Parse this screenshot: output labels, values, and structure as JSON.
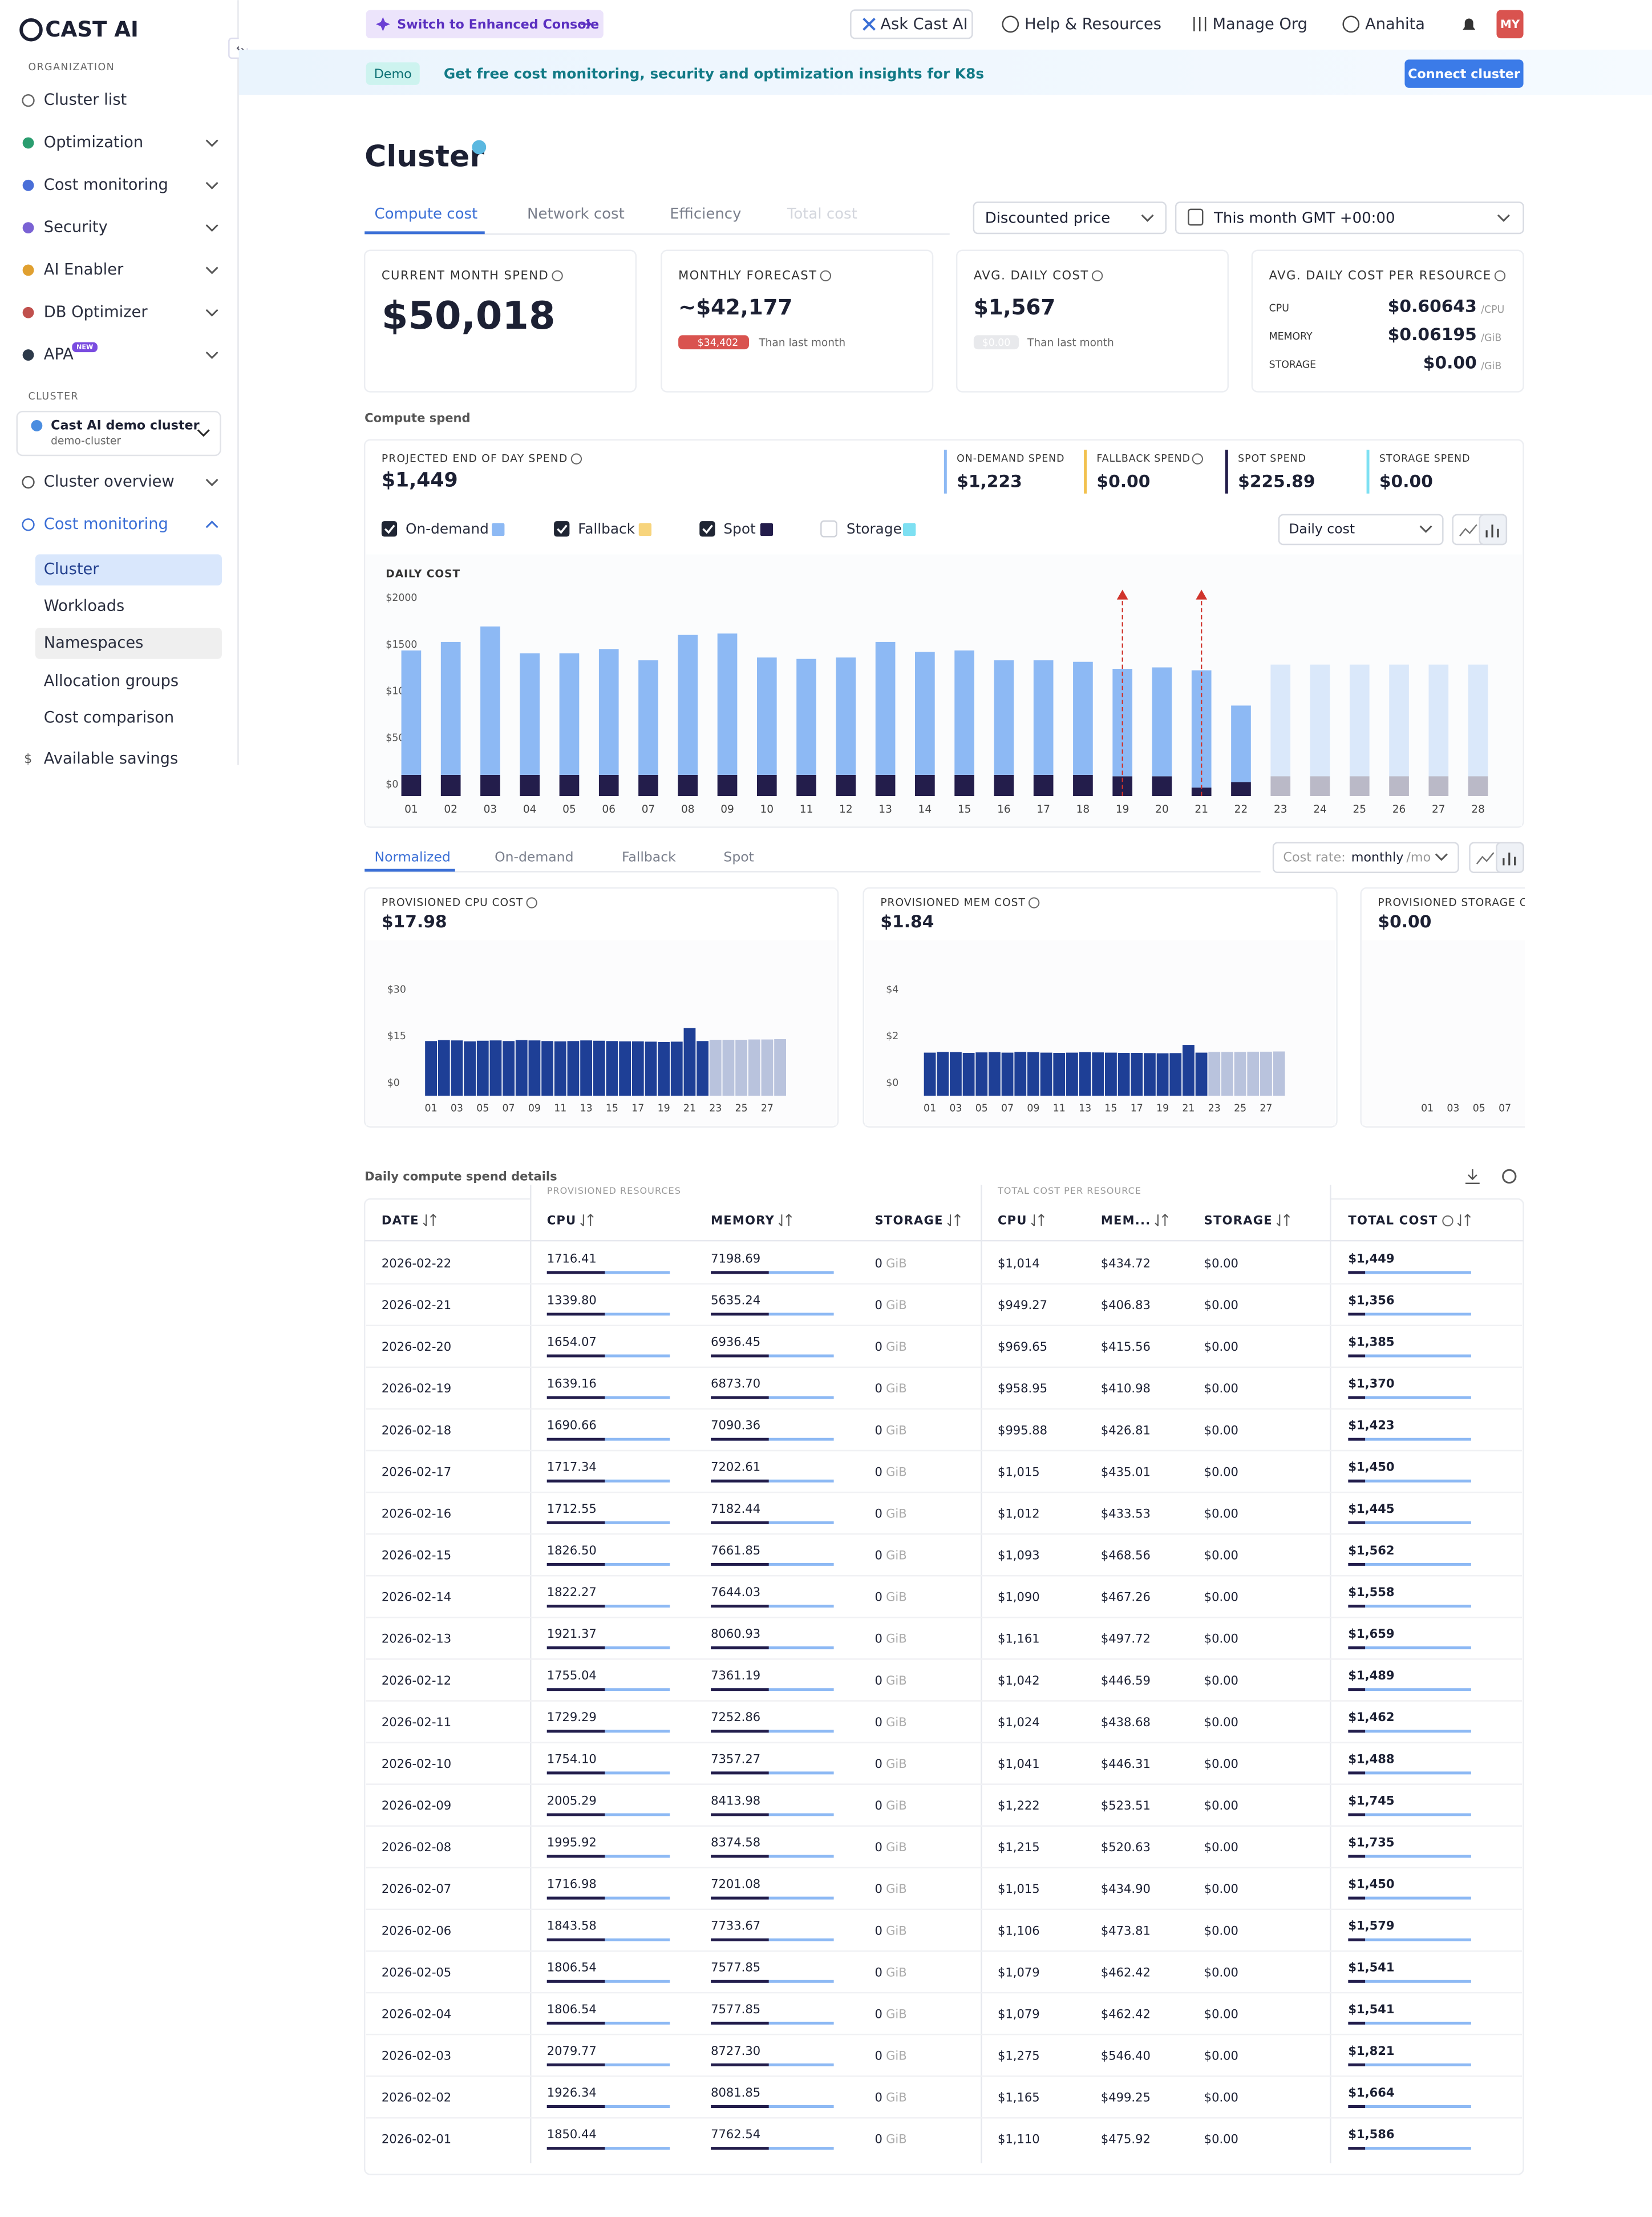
{
  "sidebar": {
    "logo": "CAST AI",
    "org_label": "ORGANIZATION",
    "org_items": [
      "Cluster list",
      "Optimization",
      "Cost monitoring",
      "Security",
      "AI Enabler",
      "DB Optimizer",
      "APA"
    ],
    "new_badge": "NEW",
    "cluster_label": "CLUSTER",
    "cluster_name": "Cast AI demo cluster",
    "cluster_id": "demo-cluster",
    "cluster_items": [
      "Cluster overview",
      "Cost monitoring"
    ],
    "sub_items": [
      "Cluster",
      "Workloads",
      "Namespaces",
      "Allocation groups",
      "Cost comparison"
    ],
    "bottom_item": "Available savings"
  },
  "topbar": {
    "enhanced": "Switch to Enhanced Console",
    "ask": "Ask Cast AI",
    "help": "Help & Resources",
    "org": "Manage Org",
    "user": "Anahita",
    "avatar": "MY"
  },
  "banner": {
    "badge": "Demo",
    "text": "Get free cost monitoring, security and optimization insights for K8s",
    "button": "Connect cluster"
  },
  "page": {
    "title": "Cluster",
    "tabs": [
      "Compute cost",
      "Network cost",
      "Efficiency",
      "Total cost"
    ],
    "price_select": "Discounted price",
    "date_select": "This month GMT +00:00"
  },
  "cards": [
    {
      "label": "CURRENT MONTH SPEND",
      "value": "$50,018"
    },
    {
      "label": "MONTHLY FORECAST",
      "value": "~$42,177",
      "change": "$34,402",
      "note": "Than last month"
    },
    {
      "label": "AVG. DAILY COST",
      "value": "$1,567",
      "change": "$0.00",
      "note": "Than last month"
    }
  ],
  "resource_card": {
    "label": "AVG. DAILY COST PER RESOURCE",
    "rows": [
      {
        "name": "CPU",
        "value": "$0.60643",
        "unit": "/CPU"
      },
      {
        "name": "MEMORY",
        "value": "$0.06195",
        "unit": "/GiB"
      },
      {
        "name": "STORAGE",
        "value": "$0.00",
        "unit": "/GiB"
      }
    ]
  },
  "compute_spend": {
    "title": "Compute spend",
    "projected_label": "PROJECTED END OF DAY SPEND",
    "projected_value": "$1,449",
    "spends": [
      {
        "label": "ON-DEMAND SPEND",
        "value": "$1,223",
        "color": "#8db9f4"
      },
      {
        "label": "FALLBACK SPEND",
        "value": "$0.00",
        "color": "#f2c14e"
      },
      {
        "label": "SPOT SPEND",
        "value": "$225.89",
        "color": "#231d4b"
      },
      {
        "label": "STORAGE SPEND",
        "value": "$0.00",
        "color": "#7ee0f2"
      }
    ],
    "view_select": "Daily cost"
  },
  "resource_tabs": {
    "tabs": [
      "Normalized",
      "On-demand",
      "Fallback",
      "Spot"
    ],
    "rate_label": "Cost rate:",
    "rate_value": "monthly",
    "rate_unit": "/mo"
  },
  "chart_data": [
    {
      "type": "bar",
      "stacked": true,
      "title": "DAILY COST",
      "categories": [
        "01",
        "02",
        "03",
        "04",
        "05",
        "06",
        "07",
        "08",
        "09",
        "10",
        "11",
        "12",
        "13",
        "14",
        "15",
        "16",
        "17",
        "18",
        "19",
        "20",
        "21",
        "22",
        "23",
        "24",
        "25",
        "26",
        "27",
        "28"
      ],
      "series": [
        {
          "name": "On-demand",
          "color": "#8db9f4",
          "checked": true,
          "values": [
            1334,
            1425,
            1591,
            1303,
            1303,
            1349,
            1228,
            1500,
            1515,
            1258,
            1243,
            1258,
            1425,
            1318,
            1334,
            1228,
            1228,
            1212,
            1152,
            1167,
            1257,
            820,
            1197,
            1197,
            1197,
            1197,
            1197,
            1197
          ]
        },
        {
          "name": "Fallback",
          "color": "#f7d47c",
          "checked": true,
          "values": [
            0,
            0,
            0,
            0,
            0,
            0,
            0,
            0,
            0,
            0,
            0,
            0,
            0,
            0,
            0,
            0,
            0,
            0,
            0,
            0,
            0,
            0,
            0,
            0,
            0,
            0,
            0,
            0
          ]
        },
        {
          "name": "Spot",
          "color": "#231d4b",
          "checked": true,
          "values": [
            227,
            227,
            227,
            227,
            227,
            227,
            227,
            227,
            227,
            227,
            227,
            227,
            227,
            227,
            227,
            227,
            227,
            227,
            212,
            212,
            91,
            150,
            212,
            212,
            212,
            212,
            212,
            212
          ]
        },
        {
          "name": "Storage",
          "color": "#7ee0f2",
          "checked": false,
          "values": [
            0,
            0,
            0,
            0,
            0,
            0,
            0,
            0,
            0,
            0,
            0,
            0,
            0,
            0,
            0,
            0,
            0,
            0,
            0,
            0,
            0,
            0,
            0,
            0,
            0,
            0,
            0,
            0
          ]
        }
      ],
      "ylim": [
        0,
        2000
      ],
      "yticks": [
        {
          "value": 0,
          "label": "$0"
        },
        {
          "value": 500,
          "label": "$500"
        },
        {
          "value": 1000,
          "label": "$1000"
        },
        {
          "value": 1500,
          "label": "$1500"
        },
        {
          "value": 2000,
          "label": "$2000"
        }
      ],
      "grid": false,
      "forecast_from": "23",
      "alerts": [
        "19",
        "21"
      ]
    },
    {
      "type": "bar",
      "title": "PROVISIONED CPU COST",
      "subtitle": "$17.98",
      "color": "#1e3f96",
      "categories": [
        "01",
        null,
        "03",
        null,
        "05",
        null,
        "07",
        null,
        "09",
        null,
        "11",
        null,
        "13",
        null,
        "15",
        null,
        "17",
        null,
        "19",
        null,
        "21",
        null,
        "23",
        null,
        "25",
        null,
        "27",
        null
      ],
      "values": [
        17.6,
        17.9,
        17.8,
        17.5,
        17.7,
        17.8,
        17.6,
        17.9,
        17.8,
        17.6,
        17.5,
        17.6,
        17.8,
        17.7,
        17.6,
        17.5,
        17.5,
        17.4,
        17.3,
        17.4,
        21.8,
        17.6,
        18.0,
        18.0,
        18.0,
        18.1,
        18.1,
        18.2
      ],
      "ylim": [
        0,
        30
      ],
      "yticks": [
        {
          "value": 0,
          "label": "$0"
        },
        {
          "value": 15,
          "label": "$15"
        },
        {
          "value": 30,
          "label": "$30"
        }
      ],
      "forecast_from": "23"
    },
    {
      "type": "bar",
      "title": "PROVISIONED MEM COST",
      "subtitle": "$1.84",
      "color": "#1e3f96",
      "categories": [
        "01",
        null,
        "03",
        null,
        "05",
        null,
        "07",
        null,
        "09",
        null,
        "11",
        null,
        "13",
        null,
        "15",
        null,
        "17",
        null,
        "19",
        null,
        "21",
        null,
        "23",
        null,
        "25",
        null,
        "27",
        null
      ],
      "values": [
        1.85,
        1.88,
        1.87,
        1.84,
        1.86,
        1.87,
        1.85,
        1.88,
        1.87,
        1.85,
        1.84,
        1.85,
        1.87,
        1.86,
        1.85,
        1.84,
        1.84,
        1.83,
        1.82,
        1.83,
        2.18,
        1.85,
        1.88,
        1.88,
        1.88,
        1.89,
        1.89,
        1.9
      ],
      "ylim": [
        0,
        4
      ],
      "yticks": [
        {
          "value": 0,
          "label": "$0"
        },
        {
          "value": 2,
          "label": "$2"
        },
        {
          "value": 4,
          "label": "$4"
        }
      ],
      "forecast_from": "23"
    },
    {
      "type": "bar",
      "title": "PROVISIONED STORAGE COST",
      "subtitle": "$0.00",
      "categories": [
        "01",
        null,
        "03",
        null,
        "05",
        null,
        "07",
        null
      ]
    }
  ],
  "table": {
    "title": "Daily compute spend details",
    "groups": [
      "PROVISIONED RESOURCES",
      "TOTAL COST PER RESOURCE"
    ],
    "columns": [
      "DATE",
      "CPU",
      "MEMORY",
      "STORAGE",
      "CPU",
      "MEM...",
      "STORAGE",
      "TOTAL COST"
    ],
    "storage_unit": "GiB",
    "rows": [
      [
        "2026-02-22",
        "1716.41",
        "7198.69",
        "0",
        "$1,014",
        "$434.72",
        "$0.00",
        "$1,449"
      ],
      [
        "2026-02-21",
        "1339.80",
        "5635.24",
        "0",
        "$949.27",
        "$406.83",
        "$0.00",
        "$1,356"
      ],
      [
        "2026-02-20",
        "1654.07",
        "6936.45",
        "0",
        "$969.65",
        "$415.56",
        "$0.00",
        "$1,385"
      ],
      [
        "2026-02-19",
        "1639.16",
        "6873.70",
        "0",
        "$958.95",
        "$410.98",
        "$0.00",
        "$1,370"
      ],
      [
        "2026-02-18",
        "1690.66",
        "7090.36",
        "0",
        "$995.88",
        "$426.81",
        "$0.00",
        "$1,423"
      ],
      [
        "2026-02-17",
        "1717.34",
        "7202.61",
        "0",
        "$1,015",
        "$435.01",
        "$0.00",
        "$1,450"
      ],
      [
        "2026-02-16",
        "1712.55",
        "7182.44",
        "0",
        "$1,012",
        "$433.53",
        "$0.00",
        "$1,445"
      ],
      [
        "2026-02-15",
        "1826.50",
        "7661.85",
        "0",
        "$1,093",
        "$468.56",
        "$0.00",
        "$1,562"
      ],
      [
        "2026-02-14",
        "1822.27",
        "7644.03",
        "0",
        "$1,090",
        "$467.26",
        "$0.00",
        "$1,558"
      ],
      [
        "2026-02-13",
        "1921.37",
        "8060.93",
        "0",
        "$1,161",
        "$497.72",
        "$0.00",
        "$1,659"
      ],
      [
        "2026-02-12",
        "1755.04",
        "7361.19",
        "0",
        "$1,042",
        "$446.59",
        "$0.00",
        "$1,489"
      ],
      [
        "2026-02-11",
        "1729.29",
        "7252.86",
        "0",
        "$1,024",
        "$438.68",
        "$0.00",
        "$1,462"
      ],
      [
        "2026-02-10",
        "1754.10",
        "7357.27",
        "0",
        "$1,041",
        "$446.31",
        "$0.00",
        "$1,488"
      ],
      [
        "2026-02-09",
        "2005.29",
        "8413.98",
        "0",
        "$1,222",
        "$523.51",
        "$0.00",
        "$1,745"
      ],
      [
        "2026-02-08",
        "1995.92",
        "8374.58",
        "0",
        "$1,215",
        "$520.63",
        "$0.00",
        "$1,735"
      ],
      [
        "2026-02-07",
        "1716.98",
        "7201.08",
        "0",
        "$1,015",
        "$434.90",
        "$0.00",
        "$1,450"
      ],
      [
        "2026-02-06",
        "1843.58",
        "7733.67",
        "0",
        "$1,106",
        "$473.81",
        "$0.00",
        "$1,579"
      ],
      [
        "2026-02-05",
        "1806.54",
        "7577.85",
        "0",
        "$1,079",
        "$462.42",
        "$0.00",
        "$1,541"
      ],
      [
        "2026-02-04",
        "1806.54",
        "7577.85",
        "0",
        "$1,079",
        "$462.42",
        "$0.00",
        "$1,541"
      ],
      [
        "2026-02-03",
        "2079.77",
        "8727.30",
        "0",
        "$1,275",
        "$546.40",
        "$0.00",
        "$1,821"
      ],
      [
        "2026-02-02",
        "1926.34",
        "8081.85",
        "0",
        "$1,165",
        "$499.25",
        "$0.00",
        "$1,664"
      ],
      [
        "2026-02-01",
        "1850.44",
        "7762.54",
        "0",
        "$1,110",
        "$475.92",
        "$0.00",
        "$1,586"
      ]
    ]
  }
}
